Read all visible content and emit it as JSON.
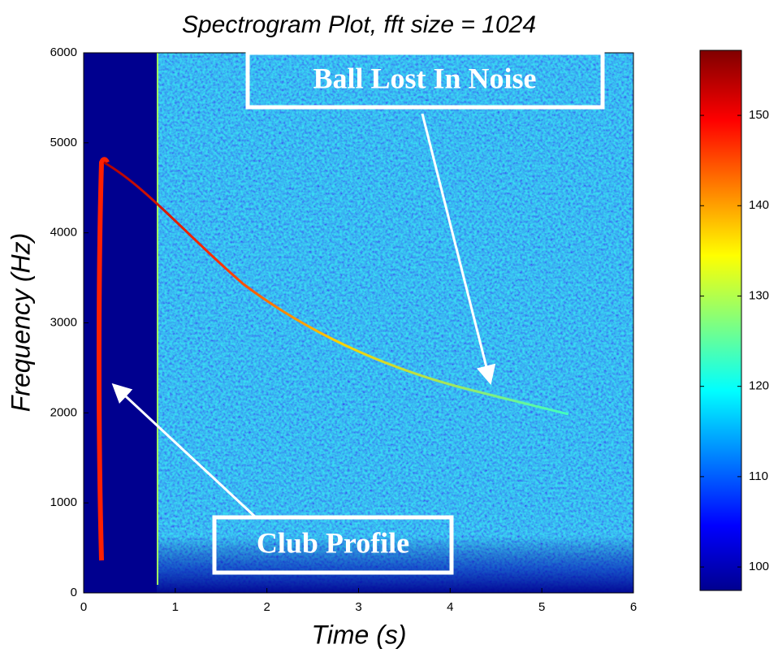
{
  "chart_data": {
    "type": "spectrogram",
    "title": "Spectrogram Plot, fft size = 1024",
    "x_label": "Time (s)",
    "y_label": "Frequency (Hz)",
    "xlim": [
      0,
      6
    ],
    "xticks": [
      0,
      1,
      2,
      3,
      4,
      5,
      6
    ],
    "ylim": [
      0,
      6000
    ],
    "yticks": [
      0,
      1000,
      2000,
      3000,
      4000,
      5000,
      6000
    ],
    "colorbar": {
      "clim": [
        97.4,
        157.2
      ],
      "ticks": [
        100,
        110,
        120,
        130,
        140,
        150
      ],
      "colormap": "jet"
    },
    "annotations": [
      "Ball Lost In Noise",
      "Club Profile"
    ]
  }
}
